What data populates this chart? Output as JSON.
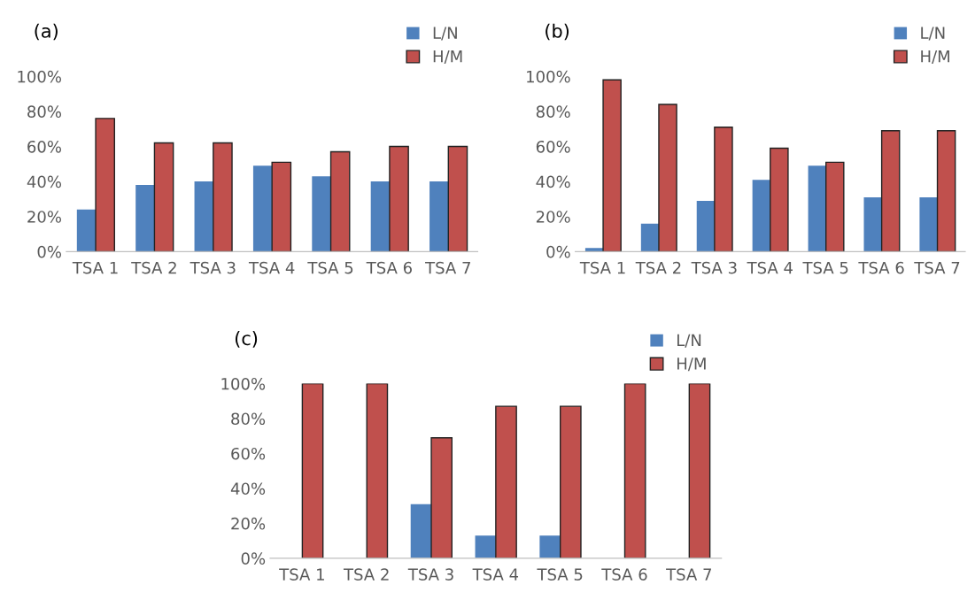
{
  "chart_data": [
    {
      "type": "bar",
      "title": "(a)",
      "categories": [
        "TSA 1",
        "TSA 2",
        "TSA 3",
        "TSA 4",
        "TSA 5",
        "TSA 6",
        "TSA 7"
      ],
      "series": [
        {
          "name": "L/N",
          "color": "#4f81bd",
          "values": [
            24,
            38,
            40,
            49,
            43,
            40,
            40
          ]
        },
        {
          "name": "H/M",
          "color": "#c0504d",
          "values": [
            76,
            62,
            62,
            51,
            57,
            60,
            60
          ]
        }
      ],
      "ylim": [
        0,
        100
      ],
      "yticks": [
        {
          "value": 0,
          "label": "0%"
        },
        {
          "value": 20,
          "label": "20%"
        },
        {
          "value": 40,
          "label": "40%"
        },
        {
          "value": 60,
          "label": "60%"
        },
        {
          "value": 80,
          "label": "80%"
        },
        {
          "value": 100,
          "label": "100%"
        }
      ],
      "legend": "top right"
    },
    {
      "type": "bar",
      "title": "(b)",
      "categories": [
        "TSA 1",
        "TSA 2",
        "TSA 3",
        "TSA 4",
        "TSA 5",
        "TSA 6",
        "TSA 7"
      ],
      "series": [
        {
          "name": "L/N",
          "color": "#4f81bd",
          "values": [
            2,
            16,
            29,
            41,
            49,
            31,
            31
          ]
        },
        {
          "name": "H/M",
          "color": "#c0504d",
          "values": [
            98,
            84,
            71,
            59,
            51,
            69,
            69
          ]
        }
      ],
      "ylim": [
        0,
        100
      ],
      "yticks": [
        {
          "value": 0,
          "label": "0%"
        },
        {
          "value": 20,
          "label": "20%"
        },
        {
          "value": 40,
          "label": "40%"
        },
        {
          "value": 60,
          "label": "60%"
        },
        {
          "value": 80,
          "label": "80%"
        },
        {
          "value": 100,
          "label": "100%"
        }
      ],
      "legend": "top right"
    },
    {
      "type": "bar",
      "title": "(c)",
      "categories": [
        "TSA 1",
        "TSA 2",
        "TSA 3",
        "TSA 4",
        "TSA 5",
        "TSA 6",
        "TSA 7"
      ],
      "series": [
        {
          "name": "L/N",
          "color": "#4f81bd",
          "values": [
            0,
            0,
            31,
            13,
            13,
            0,
            0
          ]
        },
        {
          "name": "H/M",
          "color": "#c0504d",
          "values": [
            100,
            100,
            69,
            87,
            87,
            100,
            100
          ]
        }
      ],
      "ylim": [
        0,
        100
      ],
      "yticks": [
        {
          "value": 0,
          "label": "0%"
        },
        {
          "value": 20,
          "label": "20%"
        },
        {
          "value": 40,
          "label": "40%"
        },
        {
          "value": 60,
          "label": "60%"
        },
        {
          "value": 80,
          "label": "80%"
        },
        {
          "value": 100,
          "label": "100%"
        }
      ],
      "legend": "top right"
    }
  ]
}
